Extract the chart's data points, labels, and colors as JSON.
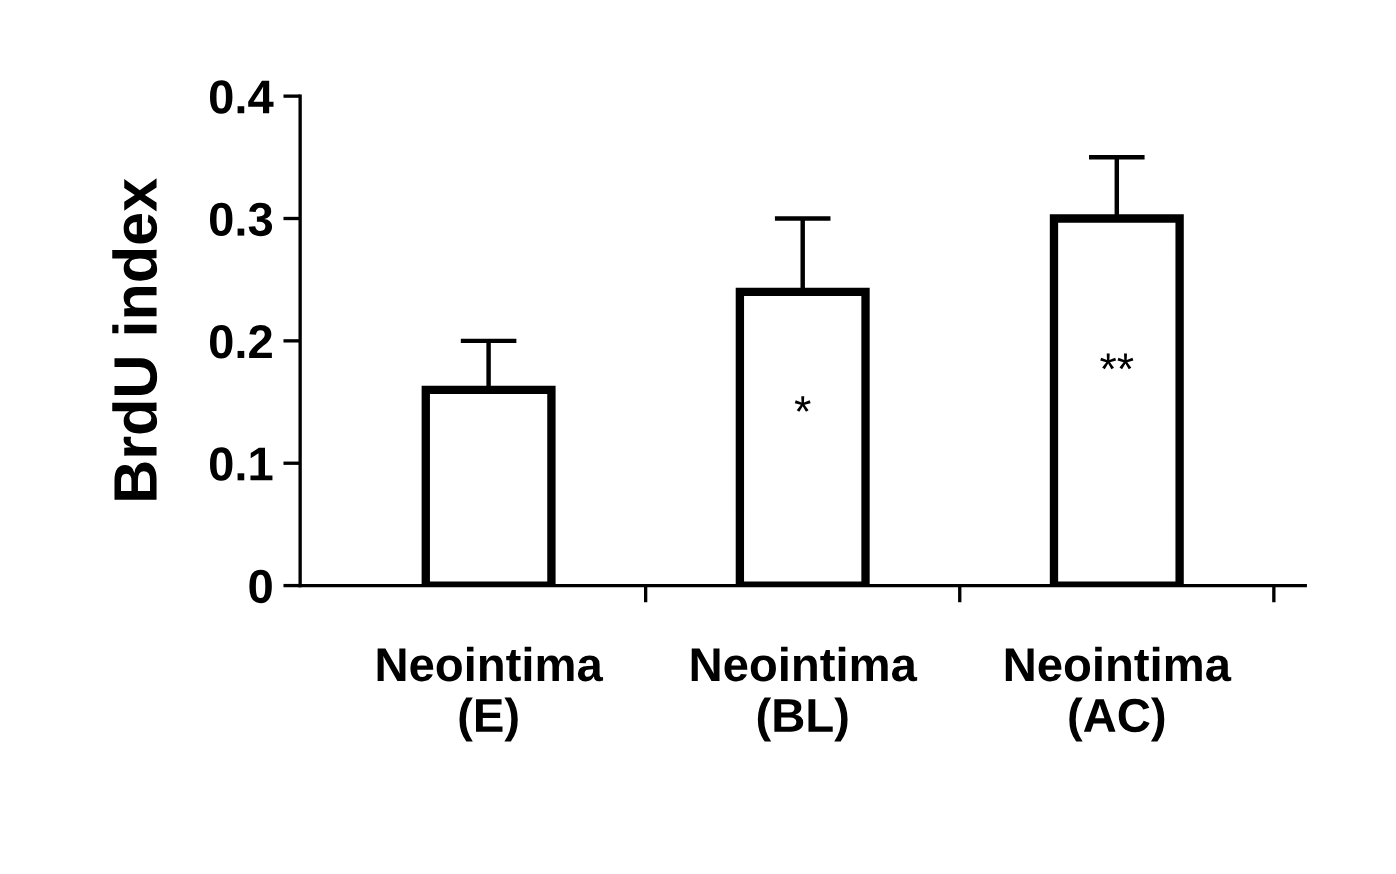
{
  "chart_data": {
    "type": "bar",
    "categories": [
      "Neointima\n(E)",
      "Neointima\n(BL)",
      "Neointima\n(AC)"
    ],
    "values": [
      0.16,
      0.24,
      0.3
    ],
    "errors": [
      [
        0.16,
        0.2
      ],
      [
        0.24,
        0.3
      ],
      [
        0.3,
        0.35
      ]
    ],
    "color": "#ffffff",
    "ylabel": "BrdU index",
    "ylim": [
      0,
      0.4
    ],
    "yticks": [
      0,
      0.1,
      0.2,
      0.3,
      0.4
    ],
    "annotations": [
      "*",
      "**"
    ],
    "grid": false
  }
}
